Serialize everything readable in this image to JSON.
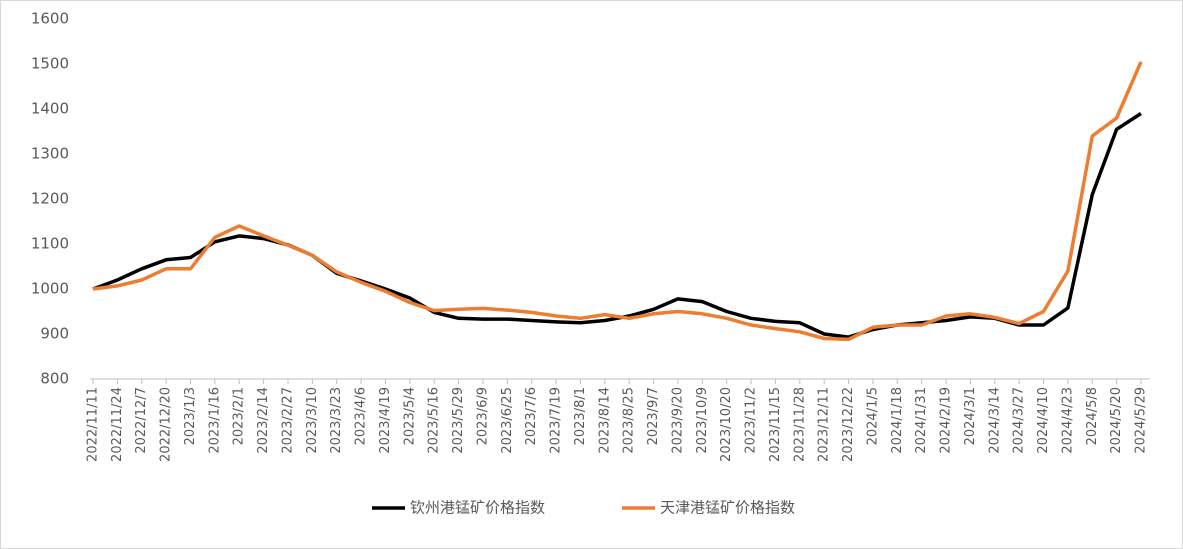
{
  "chart_data": {
    "type": "line",
    "categories": [
      "2022/11/11",
      "2022/11/24",
      "2022/12/7",
      "2022/12/20",
      "2023/1/3",
      "2023/1/16",
      "2023/2/1",
      "2023/2/14",
      "2023/2/27",
      "2023/3/10",
      "2023/3/23",
      "2023/4/6",
      "2023/4/19",
      "2023/5/4",
      "2023/5/16",
      "2023/5/29",
      "2023/6/9",
      "2023/6/25",
      "2023/7/6",
      "2023/7/19",
      "2023/8/1",
      "2023/8/14",
      "2023/8/25",
      "2023/9/7",
      "2023/9/20",
      "2023/10/9",
      "2023/10/20",
      "2023/11/2",
      "2023/11/15",
      "2023/11/28",
      "2023/12/11",
      "2023/12/22",
      "2024/1/5",
      "2024/1/18",
      "2024/1/31",
      "2024/2/19",
      "2024/3/1",
      "2024/3/14",
      "2024/3/27",
      "2024/4/10",
      "2024/4/23",
      "2024/5/8",
      "2024/5/20",
      "2024/5/29"
    ],
    "series": [
      {
        "name": "钦州港锰矿价格指数",
        "color": "#000000",
        "values": [
          1000,
          1020,
          1045,
          1065,
          1070,
          1105,
          1118,
          1112,
          1098,
          1075,
          1035,
          1018,
          1000,
          980,
          948,
          935,
          933,
          933,
          930,
          927,
          925,
          930,
          940,
          955,
          978,
          972,
          950,
          935,
          928,
          925,
          900,
          893,
          910,
          920,
          925,
          930,
          938,
          935,
          920,
          920,
          958,
          1210,
          1355,
          1390
        ]
      },
      {
        "name": "天津港锰矿价格指数",
        "color": "#ed7d31",
        "values": [
          1000,
          1007,
          1020,
          1045,
          1045,
          1115,
          1140,
          1118,
          1097,
          1075,
          1038,
          1015,
          995,
          970,
          952,
          955,
          957,
          953,
          948,
          940,
          935,
          943,
          935,
          945,
          950,
          945,
          935,
          920,
          912,
          905,
          890,
          888,
          915,
          920,
          920,
          940,
          945,
          937,
          923,
          950,
          1040,
          1340,
          1380,
          1505
        ]
      }
    ],
    "ylim": [
      800,
      1600
    ],
    "yticks": [
      800,
      900,
      1000,
      1100,
      1200,
      1300,
      1400,
      1500,
      1600
    ],
    "grid": false,
    "legend": "bottom"
  }
}
